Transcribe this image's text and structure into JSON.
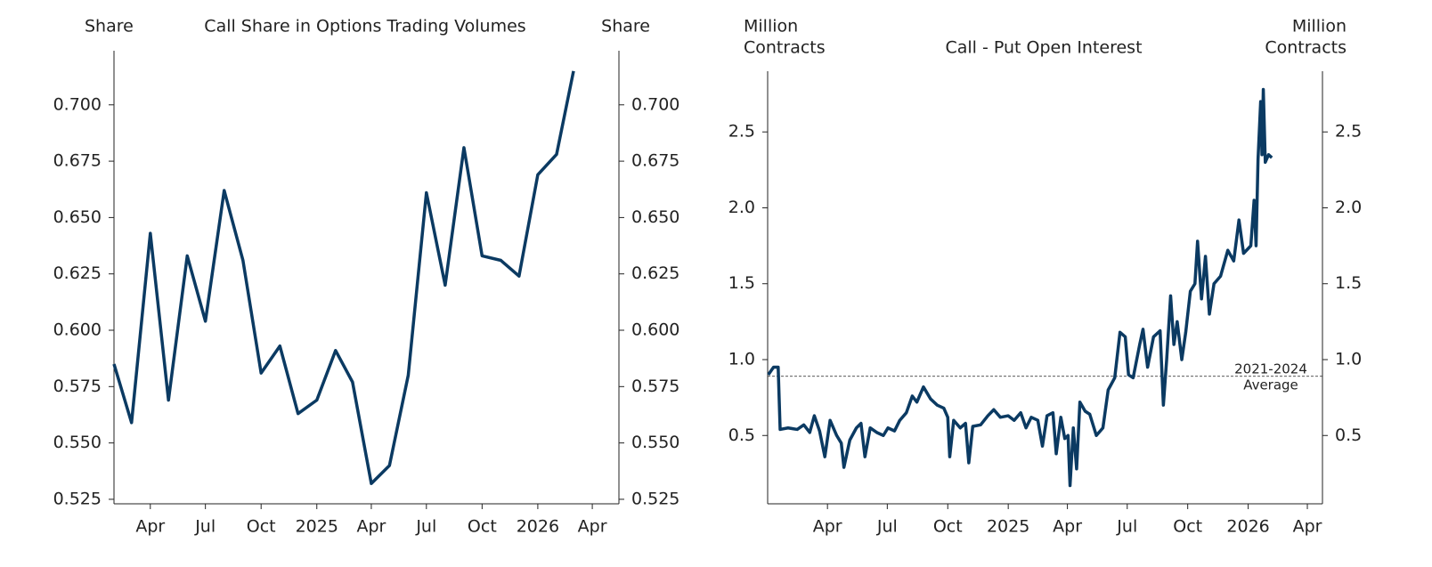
{
  "chart_data": [
    {
      "type": "line",
      "title": "Call Share in Options Trading Volumes",
      "y_label": [
        "Share"
      ],
      "y2_label": [
        "Share"
      ],
      "x": [
        "2024-02",
        "2024-03",
        "2024-04",
        "2024-05",
        "2024-06",
        "2024-07",
        "2024-08",
        "2024-09",
        "2024-10",
        "2024-11",
        "2024-12",
        "2025-01",
        "2025-02",
        "2025-03",
        "2025-04",
        "2025-05",
        "2025-06",
        "2025-07",
        "2025-08",
        "2025-09",
        "2025-10",
        "2025-11",
        "2025-12",
        "2026-01",
        "2026-02",
        "2026-03"
      ],
      "series": [
        {
          "color": "#0b3a62",
          "values": [
            0.585,
            0.559,
            0.643,
            0.569,
            0.633,
            0.604,
            0.662,
            0.631,
            0.581,
            0.593,
            0.563,
            0.569,
            0.591,
            0.577,
            0.532,
            0.54,
            0.58,
            0.661,
            0.62,
            0.681,
            0.633,
            0.631,
            0.624,
            0.669,
            0.678,
            0.715
          ]
        }
      ],
      "xlim": [
        "2024-02-01",
        "2026-05-15"
      ],
      "xticks": [
        {
          "value": "2024-04",
          "label": "Apr"
        },
        {
          "value": "2024-07",
          "label": "Jul"
        },
        {
          "value": "2024-10",
          "label": "Oct"
        },
        {
          "value": "2025-01",
          "label": "2025"
        },
        {
          "value": "2025-04",
          "label": "Apr"
        },
        {
          "value": "2025-07",
          "label": "Jul"
        },
        {
          "value": "2025-10",
          "label": "Oct"
        },
        {
          "value": "2026-01",
          "label": "2026"
        },
        {
          "value": "2026-04",
          "label": "Apr"
        }
      ],
      "ylim": [
        0.523,
        0.724
      ],
      "yticks": [
        {
          "value": 0.525,
          "label": "0.525"
        },
        {
          "value": 0.55,
          "label": "0.550"
        },
        {
          "value": 0.575,
          "label": "0.575"
        },
        {
          "value": 0.6,
          "label": "0.600"
        },
        {
          "value": 0.625,
          "label": "0.625"
        },
        {
          "value": 0.65,
          "label": "0.650"
        },
        {
          "value": 0.675,
          "label": "0.675"
        },
        {
          "value": 0.7,
          "label": "0.700"
        }
      ],
      "y2lim": [
        0.523,
        0.724
      ],
      "y2ticks": [
        {
          "value": 0.525,
          "label": "0.525"
        },
        {
          "value": 0.55,
          "label": "0.550"
        },
        {
          "value": 0.575,
          "label": "0.575"
        },
        {
          "value": 0.6,
          "label": "0.600"
        },
        {
          "value": 0.625,
          "label": "0.625"
        },
        {
          "value": 0.65,
          "label": "0.650"
        },
        {
          "value": 0.675,
          "label": "0.675"
        },
        {
          "value": 0.7,
          "label": "0.700"
        }
      ]
    },
    {
      "type": "line",
      "title": "Call - Put Open Interest",
      "y_label": [
        "Million",
        "Contracts"
      ],
      "y2_label": [
        "Million",
        "Contracts"
      ],
      "x": [
        "2024-01-02",
        "2024-01-10",
        "2024-01-17",
        "2024-01-20",
        "2024-02-01",
        "2024-02-15",
        "2024-02-25",
        "2024-03-05",
        "2024-03-12",
        "2024-03-20",
        "2024-03-28",
        "2024-04-05",
        "2024-04-15",
        "2024-04-22",
        "2024-04-26",
        "2024-05-05",
        "2024-05-15",
        "2024-05-22",
        "2024-05-28",
        "2024-06-05",
        "2024-06-15",
        "2024-06-25",
        "2024-07-02",
        "2024-07-12",
        "2024-07-20",
        "2024-07-30",
        "2024-08-08",
        "2024-08-15",
        "2024-08-25",
        "2024-09-05",
        "2024-09-15",
        "2024-09-25",
        "2024-10-01",
        "2024-10-04",
        "2024-10-10",
        "2024-10-20",
        "2024-10-28",
        "2024-11-02",
        "2024-11-08",
        "2024-11-20",
        "2024-12-01",
        "2024-12-10",
        "2024-12-20",
        "2025-01-01",
        "2025-01-10",
        "2025-01-20",
        "2025-01-28",
        "2025-02-05",
        "2025-02-15",
        "2025-02-22",
        "2025-03-01",
        "2025-03-10",
        "2025-03-15",
        "2025-03-22",
        "2025-03-28",
        "2025-04-02",
        "2025-04-05",
        "2025-04-10",
        "2025-04-15",
        "2025-04-20",
        "2025-04-28",
        "2025-05-05",
        "2025-05-15",
        "2025-05-25",
        "2025-06-02",
        "2025-06-12",
        "2025-06-20",
        "2025-06-28",
        "2025-07-03",
        "2025-07-10",
        "2025-07-20",
        "2025-07-25",
        "2025-08-01",
        "2025-08-10",
        "2025-08-20",
        "2025-08-25",
        "2025-08-30",
        "2025-09-05",
        "2025-09-10",
        "2025-09-15",
        "2025-09-22",
        "2025-09-28",
        "2025-10-05",
        "2025-10-12",
        "2025-10-16",
        "2025-10-22",
        "2025-10-28",
        "2025-11-03",
        "2025-11-10",
        "2025-11-20",
        "2025-12-01",
        "2025-12-10",
        "2025-12-18",
        "2025-12-25",
        "2026-01-05",
        "2026-01-10",
        "2026-01-13",
        "2026-01-16",
        "2026-01-20",
        "2026-01-22",
        "2026-01-24",
        "2026-01-27",
        "2026-02-01",
        "2026-02-06"
      ],
      "series": [
        {
          "color": "#0b3a62",
          "values": [
            0.9,
            0.95,
            0.95,
            0.54,
            0.55,
            0.54,
            0.57,
            0.52,
            0.63,
            0.53,
            0.36,
            0.6,
            0.5,
            0.45,
            0.29,
            0.47,
            0.55,
            0.58,
            0.36,
            0.55,
            0.52,
            0.5,
            0.55,
            0.53,
            0.6,
            0.65,
            0.76,
            0.72,
            0.82,
            0.74,
            0.7,
            0.68,
            0.62,
            0.36,
            0.6,
            0.55,
            0.58,
            0.32,
            0.56,
            0.57,
            0.63,
            0.67,
            0.62,
            0.63,
            0.6,
            0.65,
            0.55,
            0.62,
            0.6,
            0.43,
            0.63,
            0.65,
            0.38,
            0.62,
            0.48,
            0.5,
            0.17,
            0.55,
            0.28,
            0.72,
            0.66,
            0.64,
            0.5,
            0.55,
            0.8,
            0.88,
            1.18,
            1.15,
            0.9,
            0.88,
            1.1,
            1.2,
            0.95,
            1.15,
            1.19,
            0.7,
            1.0,
            1.42,
            1.1,
            1.25,
            1.0,
            1.18,
            1.45,
            1.5,
            1.78,
            1.4,
            1.68,
            1.3,
            1.5,
            1.55,
            1.72,
            1.65,
            1.92,
            1.7,
            1.75,
            2.05,
            1.75,
            2.32,
            2.7,
            2.35,
            2.78,
            2.3,
            2.35,
            2.33
          ]
        }
      ],
      "reference_line": {
        "value": 0.89,
        "label": [
          "2021-2024",
          "Average"
        ]
      },
      "xlim": [
        "2024-01-01",
        "2026-04-24"
      ],
      "xticks": [
        {
          "value": "2024-04",
          "label": "Apr"
        },
        {
          "value": "2024-07",
          "label": "Jul"
        },
        {
          "value": "2024-10",
          "label": "Oct"
        },
        {
          "value": "2025-01",
          "label": "2025"
        },
        {
          "value": "2025-04",
          "label": "Apr"
        },
        {
          "value": "2025-07",
          "label": "Jul"
        },
        {
          "value": "2025-10",
          "label": "Oct"
        },
        {
          "value": "2026-01",
          "label": "2026"
        },
        {
          "value": "2026-04",
          "label": "Apr"
        }
      ],
      "ylim": [
        0.05,
        2.9
      ],
      "yticks": [
        0.5,
        {
          "value": 1,
          "label": "1.0"
        },
        1.5,
        {
          "value": 2,
          "label": "2.0"
        },
        2.5
      ],
      "y2lim": [
        0.05,
        2.9
      ],
      "y2ticks": [
        0.5,
        {
          "value": 1,
          "label": "1.0"
        },
        1.5,
        {
          "value": 2,
          "label": "2.0"
        },
        2.5
      ]
    }
  ]
}
